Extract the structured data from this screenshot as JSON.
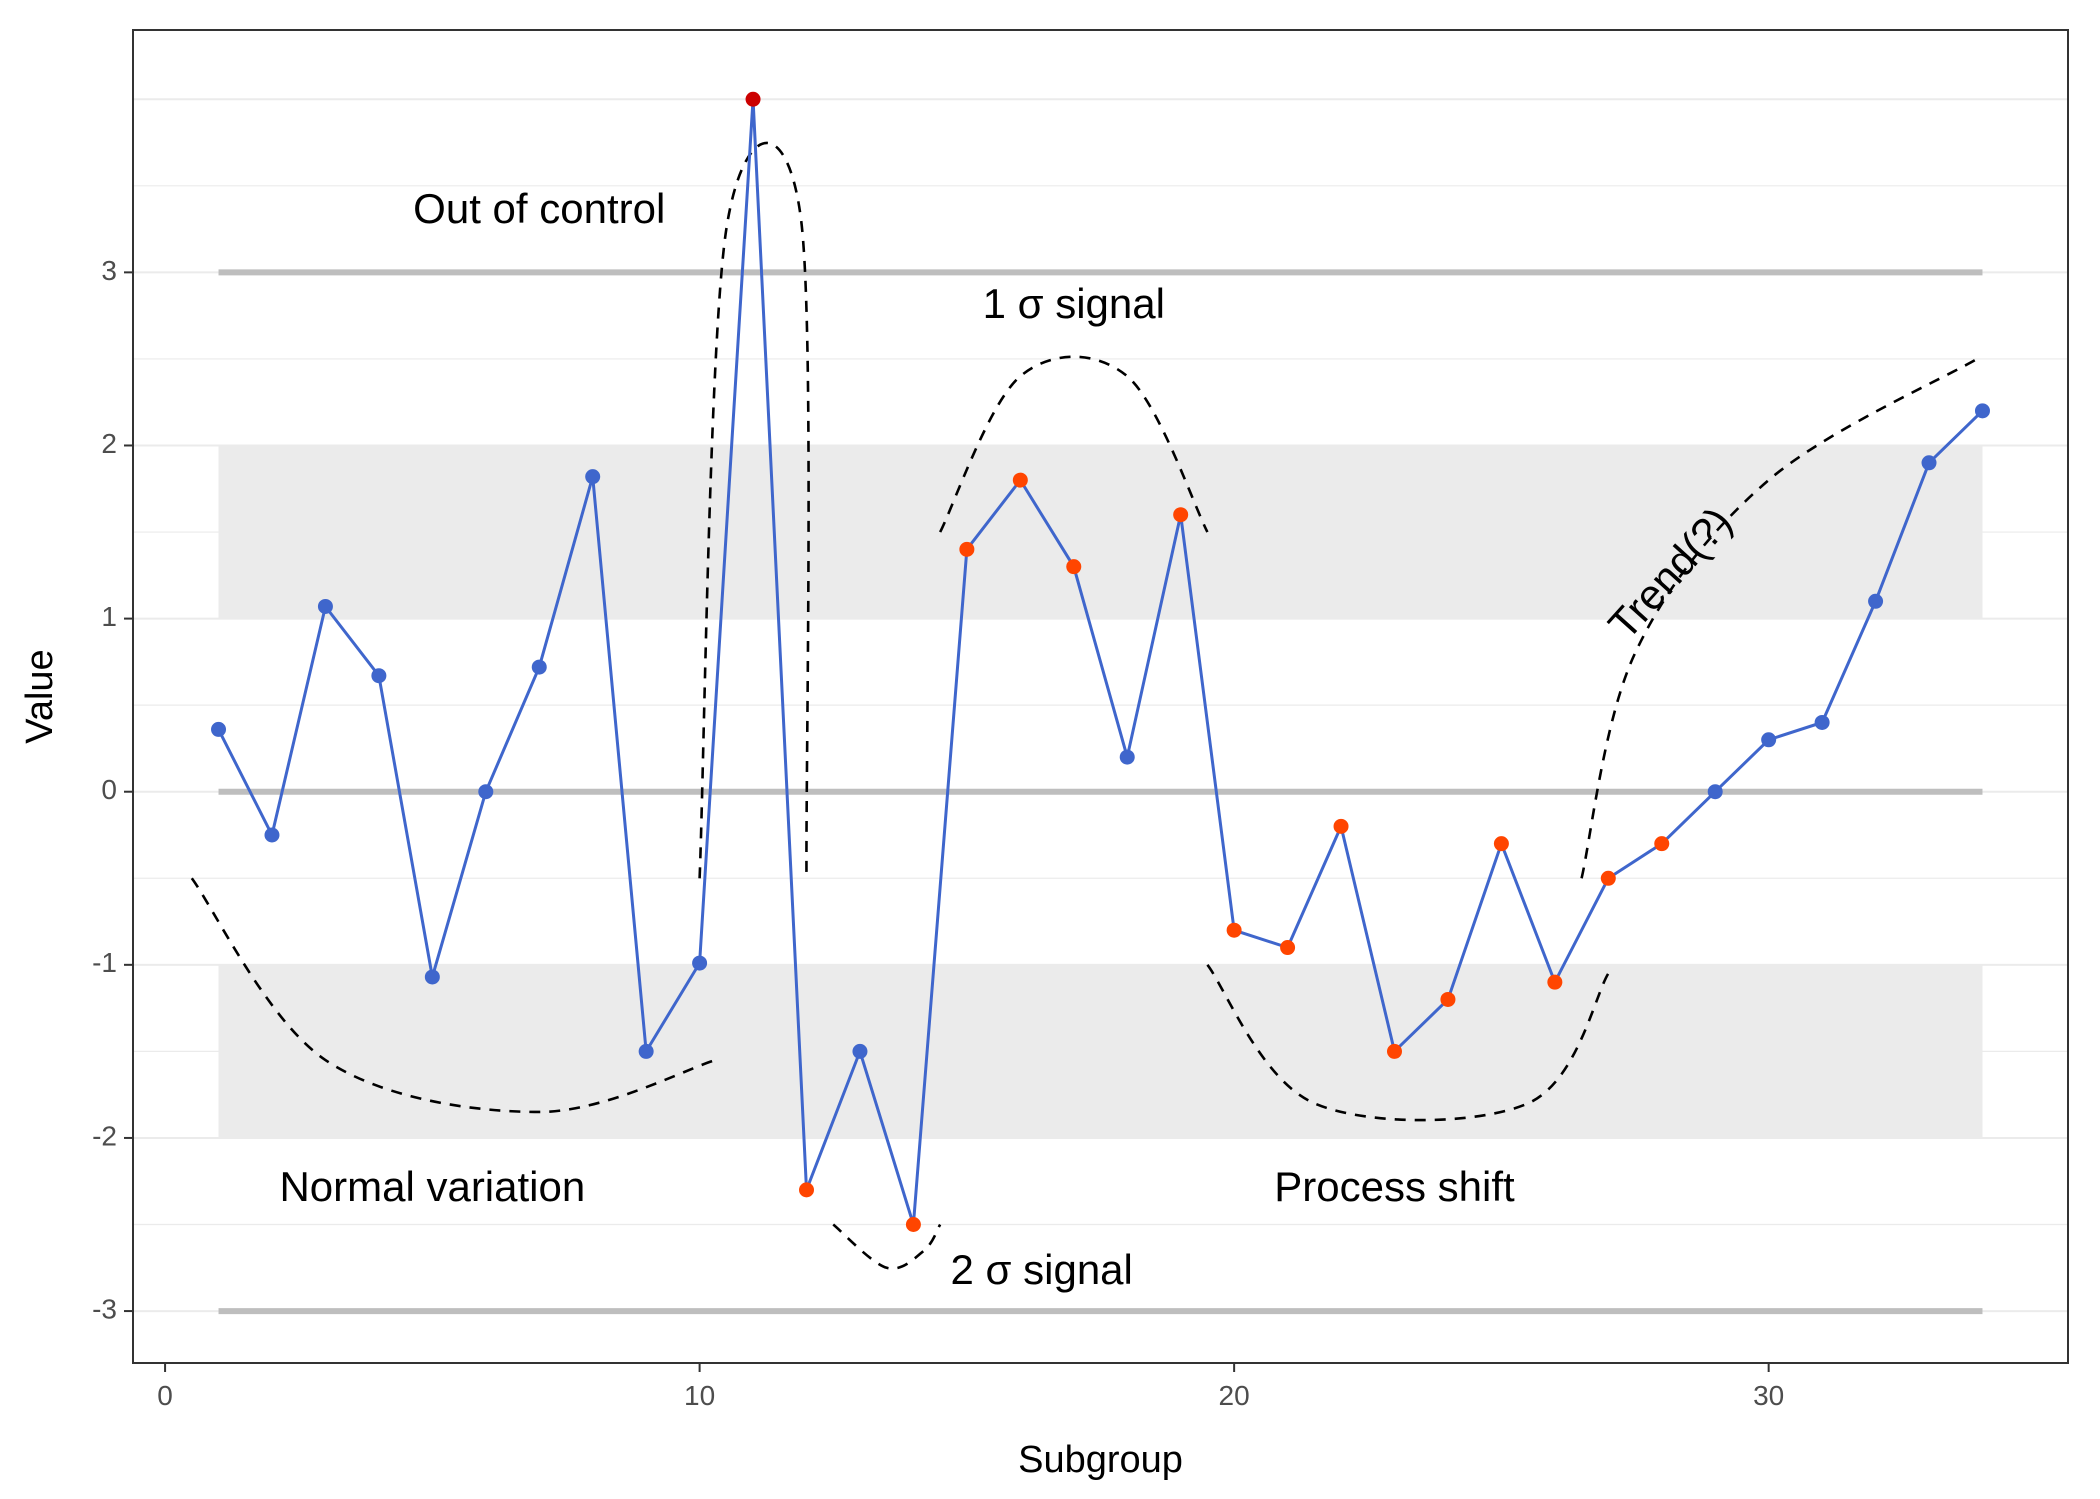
{
  "chart_data": {
    "type": "line",
    "xlabel": "Subgroup",
    "ylabel": "Value",
    "xlim": [
      -0.6,
      35.6
    ],
    "ylim": [
      -3.3,
      4.4
    ],
    "x_ticks": [
      0,
      10,
      20,
      30
    ],
    "x_tick_labels": [
      "0",
      "10",
      "20",
      "30"
    ],
    "y_ticks": [
      -3,
      -2,
      -1,
      0,
      1,
      2,
      3
    ],
    "y_tick_labels": [
      "-3",
      "-2",
      "-1",
      "0",
      "1",
      "2",
      "3"
    ],
    "grid": true,
    "legend": "none",
    "center_line": 0,
    "control_limits": [
      -3,
      3
    ],
    "limit_span": [
      1,
      34
    ],
    "shaded_bands": [
      {
        "from": 1,
        "to": 2
      },
      {
        "from": -2,
        "to": -1
      }
    ],
    "series": [
      {
        "x": [
          1,
          2,
          3,
          4,
          5,
          6,
          7,
          8,
          9,
          10,
          11,
          12,
          13,
          14,
          15,
          16,
          17,
          18,
          19,
          20,
          21,
          22,
          23,
          24,
          25,
          26,
          27,
          28,
          29,
          30,
          31,
          32,
          33,
          34
        ],
        "values": [
          0.36,
          -0.25,
          1.07,
          0.67,
          -1.07,
          0,
          0.72,
          1.82,
          -1.5,
          -0.99,
          4.0,
          -2.3,
          -1.5,
          -2.5,
          1.4,
          1.8,
          1.3,
          0.2,
          1.6,
          -0.8,
          -0.9,
          -0.2,
          -1.5,
          -1.2,
          -0.3,
          -1.1,
          -0.5,
          -0.3,
          0,
          0.3,
          0.4,
          1.1,
          1.9,
          2.2
        ],
        "point_status": [
          "normal",
          "normal",
          "normal",
          "normal",
          "normal",
          "normal",
          "normal",
          "normal",
          "normal",
          "normal",
          "out",
          "signal",
          "normal",
          "signal",
          "signal",
          "signal",
          "signal",
          "normal",
          "signal",
          "signal",
          "signal",
          "signal",
          "signal",
          "signal",
          "signal",
          "signal",
          "signal",
          "signal",
          "normal",
          "normal",
          "normal",
          "normal",
          "normal",
          "normal"
        ]
      }
    ],
    "annotations": [
      {
        "text": "Out of control",
        "x": 7,
        "y": 3.35
      },
      {
        "text": "1 σ signal",
        "x": 17,
        "y": 2.8
      },
      {
        "text": "Trend(?)",
        "x": 28.2,
        "y": 1.25,
        "rotation": -48
      },
      {
        "text": "Normal variation",
        "x": 5,
        "y": -2.3
      },
      {
        "text": "Process shift",
        "x": 23,
        "y": -2.3
      },
      {
        "text": "2 σ signal",
        "x": 16.4,
        "y": -2.78
      }
    ],
    "dashed_curves": [
      [
        [
          0.5,
          -0.5
        ],
        [
          3,
          -1.55
        ],
        [
          7,
          -1.85
        ],
        [
          10.3,
          -1.55
        ]
      ],
      [
        [
          10,
          -0.5
        ],
        [
          10.5,
          3.25
        ],
        [
          11.9,
          3.3
        ],
        [
          12,
          -0.5
        ]
      ],
      [
        [
          14.5,
          1.5
        ],
        [
          16,
          2.4
        ],
        [
          18,
          2.4
        ],
        [
          19.5,
          1.5
        ]
      ],
      [
        [
          12.5,
          -2.5
        ],
        [
          13.5,
          -2.75
        ],
        [
          14.2,
          -2.65
        ],
        [
          14.5,
          -2.5
        ]
      ],
      [
        [
          19.5,
          -1.0
        ],
        [
          21.5,
          -1.8
        ],
        [
          25.5,
          -1.8
        ],
        [
          27,
          -1.05
        ]
      ],
      [
        [
          26.5,
          -0.5
        ],
        [
          27.5,
          0.8
        ],
        [
          30,
          1.8
        ],
        [
          33.9,
          2.5
        ]
      ]
    ],
    "colors": {
      "line": "#3f66cc",
      "normal_point": "#3f66cc",
      "signal_point": "#ff4500",
      "out_point": "#cc0000",
      "band_fill": "#ebebeb",
      "ref_line": "#bebebe",
      "grid": "#ebebeb",
      "panel_border": "#333333"
    }
  }
}
